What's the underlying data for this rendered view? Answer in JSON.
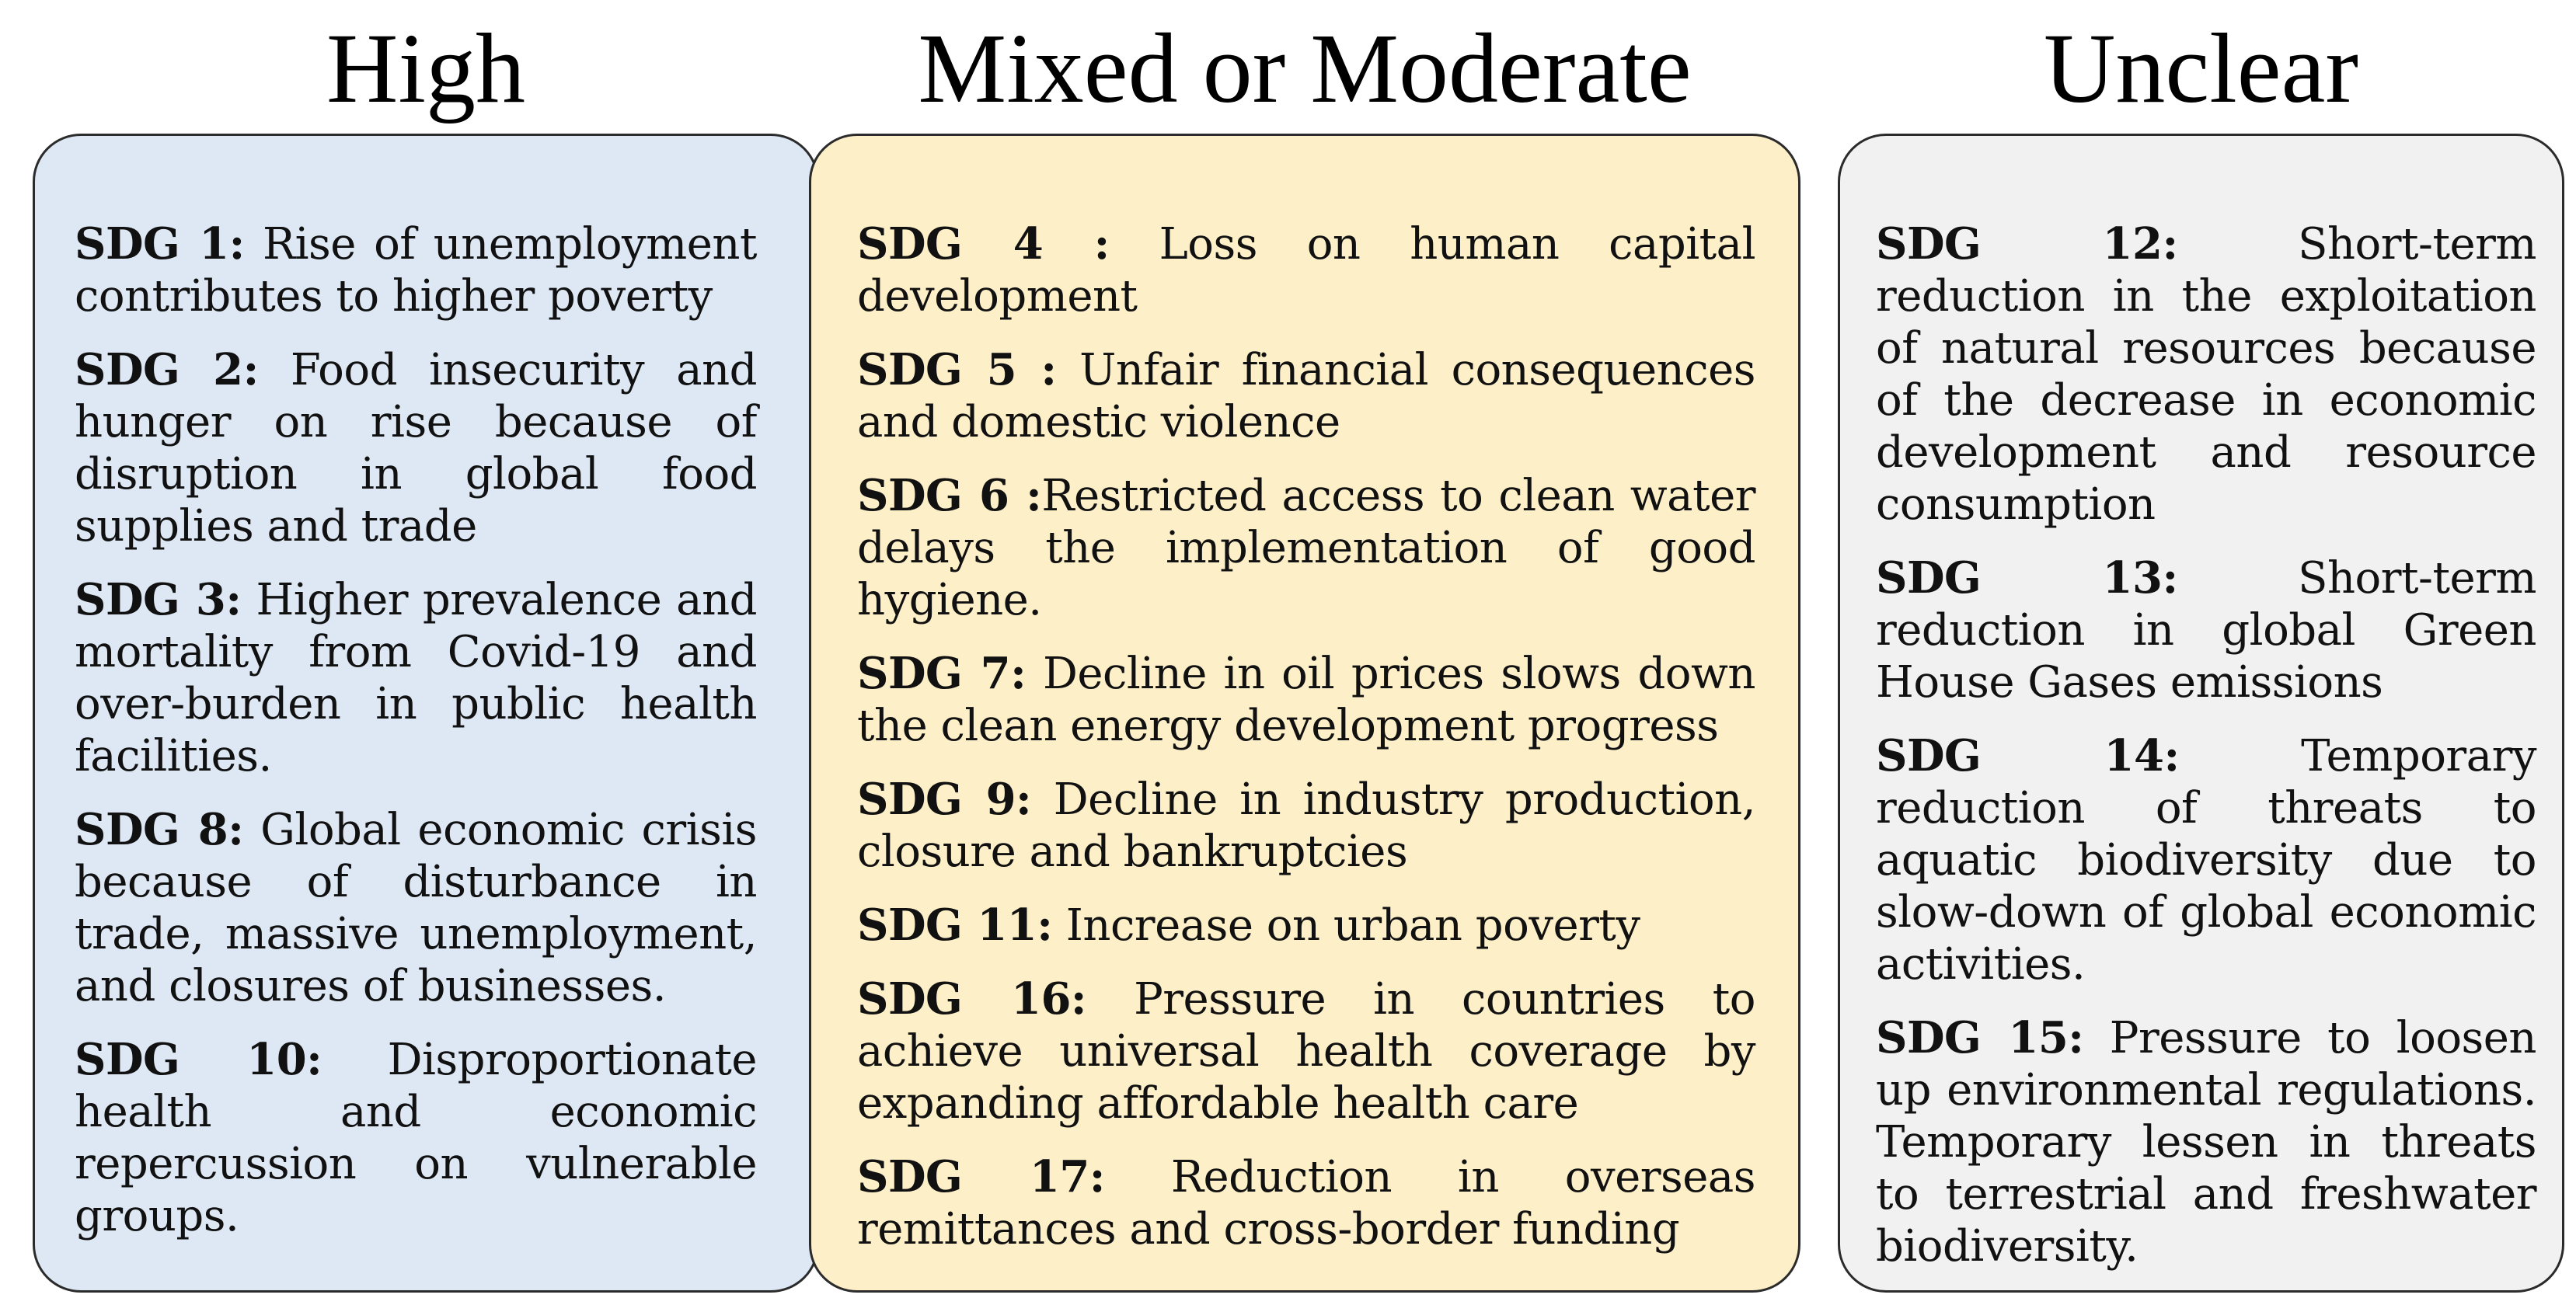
{
  "columns": [
    {
      "title": "High",
      "color": "#dde8f4",
      "items": [
        {
          "code": "SDG 1:",
          "text": "Rise of unemployment contributes to higher poverty"
        },
        {
          "code": "SDG 2:",
          "text": "Food insecurity and hunger on rise because of disruption in global food supplies and trade"
        },
        {
          "code": "SDG 3:",
          "text": "Higher prevalence and mortality from Covid-19  and over-burden in public health facilities."
        },
        {
          "code": "SDG 8:",
          "text": "Global economic crisis because of disturbance in trade, massive unemployment, and closures of businesses."
        },
        {
          "code": "SDG 10:",
          "text": "Disproportionate health and economic repercussion on vulnerable groups."
        }
      ]
    },
    {
      "title": "Mixed or Moderate",
      "color": "#fdefc8",
      "items": [
        {
          "code": "SDG 4 :",
          "text": "Loss on human capital development"
        },
        {
          "code": "SDG 5 :",
          "text": "Unfair financial consequences and domestic violence"
        },
        {
          "code": "SDG 6 :",
          "text": "Restricted access to clean water delays the implementation of good hygiene."
        },
        {
          "code": "SDG 7:",
          "text": "Decline in oil prices slows down the clean energy development progress"
        },
        {
          "code": "SDG 9:",
          "text": "Decline in industry production, closure and bankruptcies"
        },
        {
          "code": "SDG 11:",
          "text": "Increase on urban poverty"
        },
        {
          "code": "SDG 16:",
          "text": "Pressure in countries to achieve universal health coverage by expanding affordable health care"
        },
        {
          "code": "SDG 17:",
          "text": "Reduction in overseas remittances and cross-border funding"
        }
      ]
    },
    {
      "title": "Unclear",
      "color": "#f1f1f1",
      "items": [
        {
          "code": "SDG 12:",
          "text": "Short-term reduction in the exploitation of natural resources because of the decrease in economic development and resource consumption"
        },
        {
          "code": "SDG 13:",
          "text": "Short-term reduction in global Green House Gases emissions"
        },
        {
          "code": "SDG 14:",
          "text": "Temporary reduction of threats to aquatic biodiversity due to slow-down of global economic activities."
        },
        {
          "code": "SDG 15:",
          "text": "Pressure to loosen up environmental regulations. Temporary lessen in threats to terrestrial and freshwater biodiversity."
        }
      ]
    }
  ]
}
